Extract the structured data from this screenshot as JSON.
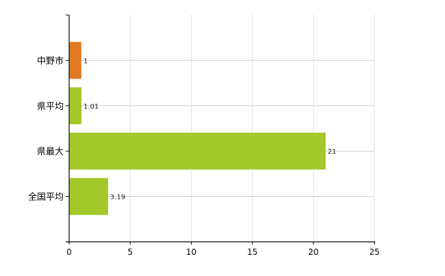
{
  "chart_data": {
    "type": "bar",
    "orientation": "horizontal",
    "categories": [
      "中野市",
      "県平均",
      "県最大",
      "全国平均"
    ],
    "values": [
      1,
      1.01,
      21,
      3.19
    ],
    "data_labels": [
      "1",
      "1.01",
      "21",
      "3.19"
    ],
    "colors": [
      "#e07b22",
      "#a3c82a",
      "#a3c82a",
      "#a3c82a"
    ],
    "title": "",
    "xlabel": "",
    "ylabel": "",
    "xlim": [
      0,
      25
    ],
    "xticks": [
      0,
      5,
      10,
      15,
      20,
      25
    ],
    "grid": true,
    "legend": "none"
  }
}
